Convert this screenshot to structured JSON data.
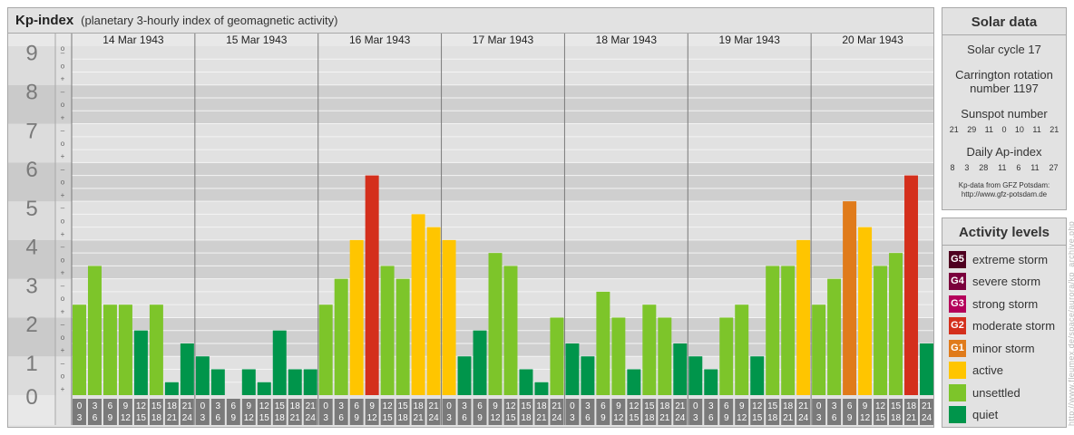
{
  "title": {
    "main": "Kp-index",
    "subtitle": "(planetary 3-hourly index of geomagnetic activity)"
  },
  "colors": {
    "quiet": "#00954b",
    "unsettled": "#7dc52a",
    "active": "#ffc500",
    "minor_storm": "#e07b1b",
    "moderate_storm": "#d42f1c",
    "strong_storm": "#b4005a",
    "severe_storm": "#7a003c",
    "extreme_storm": "#4f0020"
  },
  "chart_data": {
    "type": "bar",
    "ylim": [
      0,
      9
    ],
    "y_ticks": [
      "0",
      "1",
      "2",
      "3",
      "4",
      "5",
      "6",
      "7",
      "8",
      "9"
    ],
    "sub_ticks": [
      "+",
      "o",
      "–"
    ],
    "dates": [
      "14 Mar 1943",
      "15 Mar 1943",
      "16 Mar 1943",
      "17 Mar 1943",
      "18 Mar 1943",
      "19 Mar 1943",
      "20 Mar 1943"
    ],
    "interval_start": [
      "0",
      "3",
      "6",
      "9",
      "12",
      "15",
      "18",
      "21"
    ],
    "interval_end": [
      "3",
      "6",
      "9",
      "12",
      "15",
      "18",
      "21",
      "24"
    ],
    "values": [
      [
        2.333,
        3.333,
        2.333,
        2.333,
        1.667,
        2.333,
        0.333,
        1.333
      ],
      [
        1.0,
        0.667,
        0.0,
        0.667,
        0.333,
        1.667,
        0.667,
        0.667
      ],
      [
        2.333,
        3.0,
        4.0,
        5.667,
        3.333,
        3.0,
        4.667,
        4.333
      ],
      [
        4.0,
        1.0,
        1.667,
        3.667,
        3.333,
        0.667,
        0.333,
        2.0
      ],
      [
        1.333,
        1.0,
        2.667,
        2.0,
        0.667,
        2.333,
        2.0,
        1.333
      ],
      [
        1.0,
        0.667,
        2.0,
        2.333,
        1.0,
        3.333,
        3.333,
        4.0
      ],
      [
        2.333,
        3.0,
        5.0,
        4.333,
        3.333,
        3.667,
        5.667,
        1.333
      ]
    ]
  },
  "solar": {
    "title": "Solar data",
    "cycle": "Solar cycle 17",
    "carrington_line1": "Carrington rotation",
    "carrington_line2": "number 1197",
    "sunspot_title": "Sunspot number",
    "sunspot_values": [
      "21",
      "29",
      "11",
      "0",
      "10",
      "11",
      "21"
    ],
    "ap_title": "Daily Ap-index",
    "ap_values": [
      "8",
      "3",
      "28",
      "11",
      "6",
      "11",
      "27"
    ],
    "source_line1": "Kp-data from GFZ Potsdam:",
    "source_line2": "http://www.gfz-potsdam.de"
  },
  "levels": {
    "title": "Activity levels",
    "items": [
      {
        "code": "G5",
        "label": "extreme storm",
        "color": "#4f0020"
      },
      {
        "code": "G4",
        "label": "severe storm",
        "color": "#7a003c"
      },
      {
        "code": "G3",
        "label": "strong storm",
        "color": "#b4005a"
      },
      {
        "code": "G2",
        "label": "moderate storm",
        "color": "#d42f1c"
      },
      {
        "code": "G1",
        "label": "minor storm",
        "color": "#e07b1b"
      },
      {
        "code": "",
        "label": "active",
        "color": "#ffc500"
      },
      {
        "code": "",
        "label": "unsettled",
        "color": "#7dc52a"
      },
      {
        "code": "",
        "label": "quiet",
        "color": "#00954b"
      }
    ]
  },
  "watermark": "http://www.fleumex.de/space/aurora/kp_archive.php"
}
